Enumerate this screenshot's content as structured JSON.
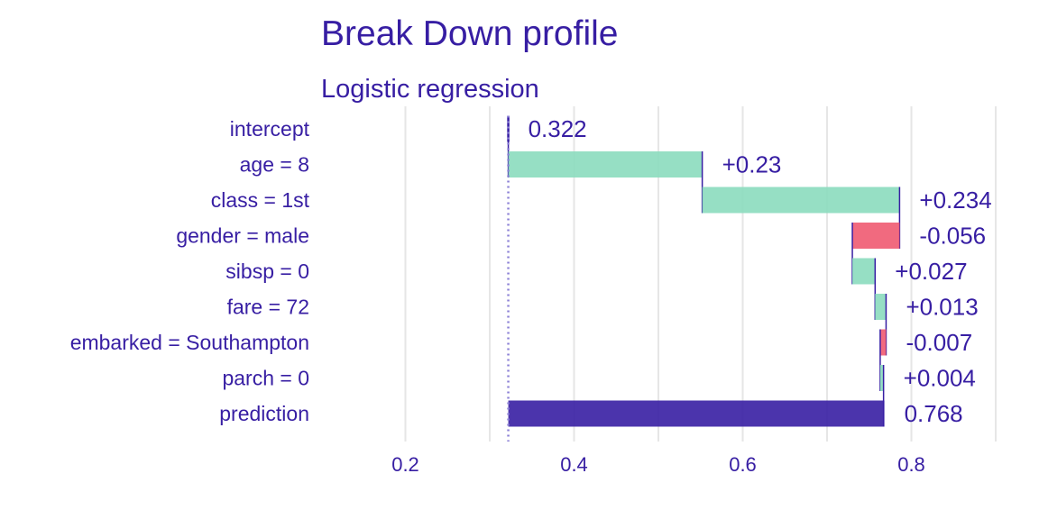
{
  "chart_data": {
    "type": "bar",
    "title": "Break Down profile",
    "subtitle": "Logistic regression",
    "xlim": [
      0.1,
      0.9
    ],
    "xticks": [
      0.2,
      0.4,
      0.6,
      0.8
    ],
    "xtick_labels": [
      "0.2",
      "0.4",
      "0.6",
      "0.8"
    ],
    "grid": true,
    "baseline": 0.322,
    "bars": [
      {
        "label": "intercept",
        "start": 0.322,
        "end": 0.322,
        "value_label": "0.322",
        "kind": "intercept"
      },
      {
        "label": "age = 8",
        "start": 0.322,
        "end": 0.552,
        "value_label": "+0.23",
        "kind": "positive"
      },
      {
        "label": "class = 1st",
        "start": 0.552,
        "end": 0.786,
        "value_label": "+0.234",
        "kind": "positive"
      },
      {
        "label": "gender = male",
        "start": 0.786,
        "end": 0.73,
        "value_label": "-0.056",
        "kind": "negative"
      },
      {
        "label": "sibsp = 0",
        "start": 0.73,
        "end": 0.757,
        "value_label": "+0.027",
        "kind": "positive"
      },
      {
        "label": "fare = 72",
        "start": 0.757,
        "end": 0.77,
        "value_label": "+0.013",
        "kind": "positive"
      },
      {
        "label": "embarked = Southampton",
        "start": 0.77,
        "end": 0.763,
        "value_label": "-0.007",
        "kind": "negative"
      },
      {
        "label": "parch = 0",
        "start": 0.763,
        "end": 0.767,
        "value_label": "+0.004",
        "kind": "positive"
      },
      {
        "label": "prediction",
        "start": 0.322,
        "end": 0.768,
        "value_label": "0.768",
        "kind": "prediction"
      }
    ],
    "colors": {
      "positive": "#8bdcbe",
      "negative": "#f05a71",
      "prediction": "#371ea3",
      "connector": "#371ea3",
      "baseline": "#8b80d6",
      "text": "#371ea3"
    }
  }
}
